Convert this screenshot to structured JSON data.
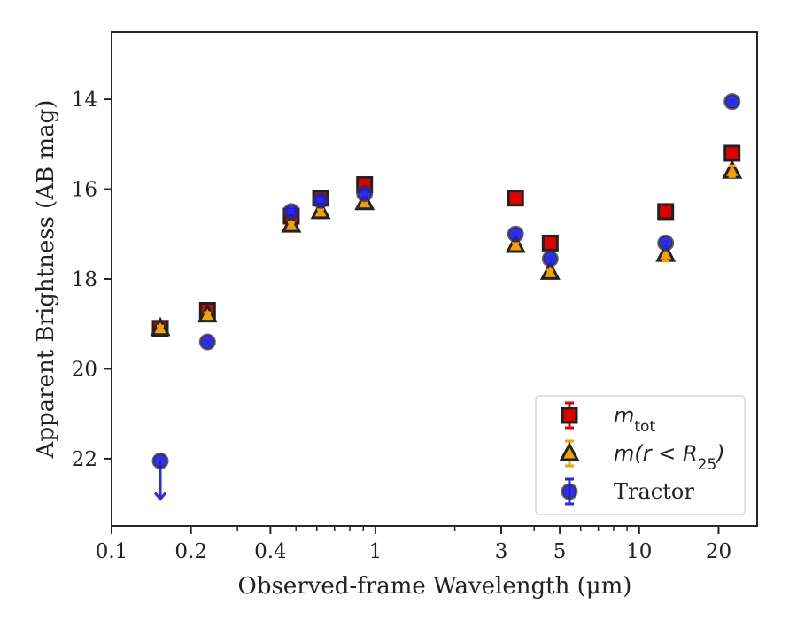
{
  "chart_data": {
    "type": "scatter",
    "title": "",
    "xlabel": "Observed-frame Wavelength (μm)",
    "ylabel": "Apparent Brightness (AB mag)",
    "xscale": "log",
    "xlim": [
      0.1,
      28
    ],
    "ylim": [
      23.5,
      12.5
    ],
    "y_inverted": true,
    "grid": false,
    "legend_position": "lower-right",
    "x_ticks": [
      0.1,
      0.2,
      0.4,
      1,
      3,
      5,
      10,
      20
    ],
    "x_tick_labels": [
      "0.1",
      "0.2",
      "0.4",
      "1",
      "3",
      "5",
      "10",
      "20"
    ],
    "y_ticks": [
      14,
      16,
      18,
      20,
      22
    ],
    "y_tick_labels": [
      "14",
      "16",
      "18",
      "20",
      "22"
    ],
    "series": [
      {
        "name": "m_tot",
        "legend_main": "m",
        "legend_sub": "tot",
        "marker": "square",
        "color": "#e00000",
        "edge": "#222222",
        "error_color": "#e00000",
        "points": [
          {
            "x": 0.153,
            "y": 19.1,
            "err": 0.05
          },
          {
            "x": 0.231,
            "y": 18.7,
            "err": 0.05
          },
          {
            "x": 0.48,
            "y": 16.6,
            "err": 0.12
          },
          {
            "x": 0.62,
            "y": 16.2,
            "err": 0.08
          },
          {
            "x": 0.91,
            "y": 15.9,
            "err": 0.08
          },
          {
            "x": 3.4,
            "y": 16.2,
            "err": 0.05
          },
          {
            "x": 4.6,
            "y": 17.2,
            "err": 0.05
          },
          {
            "x": 12.6,
            "y": 16.5,
            "err": 0.05
          },
          {
            "x": 22.5,
            "y": 15.2,
            "err": 0.05
          }
        ]
      },
      {
        "name": "m(r < R25)",
        "legend_main": "m(r < R",
        "legend_sub": "25",
        "legend_tail": ")",
        "marker": "triangle",
        "color": "#f5a100",
        "edge": "#222222",
        "error_color": "#f5a100",
        "points": [
          {
            "x": 0.153,
            "y": 19.1,
            "err": 0.05
          },
          {
            "x": 0.231,
            "y": 18.8,
            "err": 0.05
          },
          {
            "x": 0.48,
            "y": 16.8,
            "err": 0.06
          },
          {
            "x": 0.62,
            "y": 16.5,
            "err": 0.05
          },
          {
            "x": 0.91,
            "y": 16.3,
            "err": 0.05
          },
          {
            "x": 3.4,
            "y": 17.25,
            "err": 0.05
          },
          {
            "x": 4.6,
            "y": 17.85,
            "err": 0.05
          },
          {
            "x": 12.6,
            "y": 17.45,
            "err": 0.15
          },
          {
            "x": 22.5,
            "y": 15.6,
            "err": 0.12
          }
        ]
      },
      {
        "name": "Tractor",
        "legend_main": "Tractor",
        "marker": "circle",
        "color": "#1a1aee",
        "edge": "#333333",
        "error_color": "#2a2aee",
        "points": [
          {
            "x": 0.153,
            "y": 22.05,
            "err": 0,
            "upper_limit": true
          },
          {
            "x": 0.231,
            "y": 19.4,
            "err": 0.03
          },
          {
            "x": 0.48,
            "y": 16.5,
            "err": 0.03
          },
          {
            "x": 0.62,
            "y": 16.25,
            "err": 0.03
          },
          {
            "x": 0.91,
            "y": 16.1,
            "err": 0.03
          },
          {
            "x": 3.4,
            "y": 17.0,
            "err": 0.03
          },
          {
            "x": 4.6,
            "y": 17.55,
            "err": 0.03
          },
          {
            "x": 12.6,
            "y": 17.2,
            "err": 0.03
          },
          {
            "x": 22.5,
            "y": 14.05,
            "err": 0.03
          }
        ]
      }
    ]
  }
}
